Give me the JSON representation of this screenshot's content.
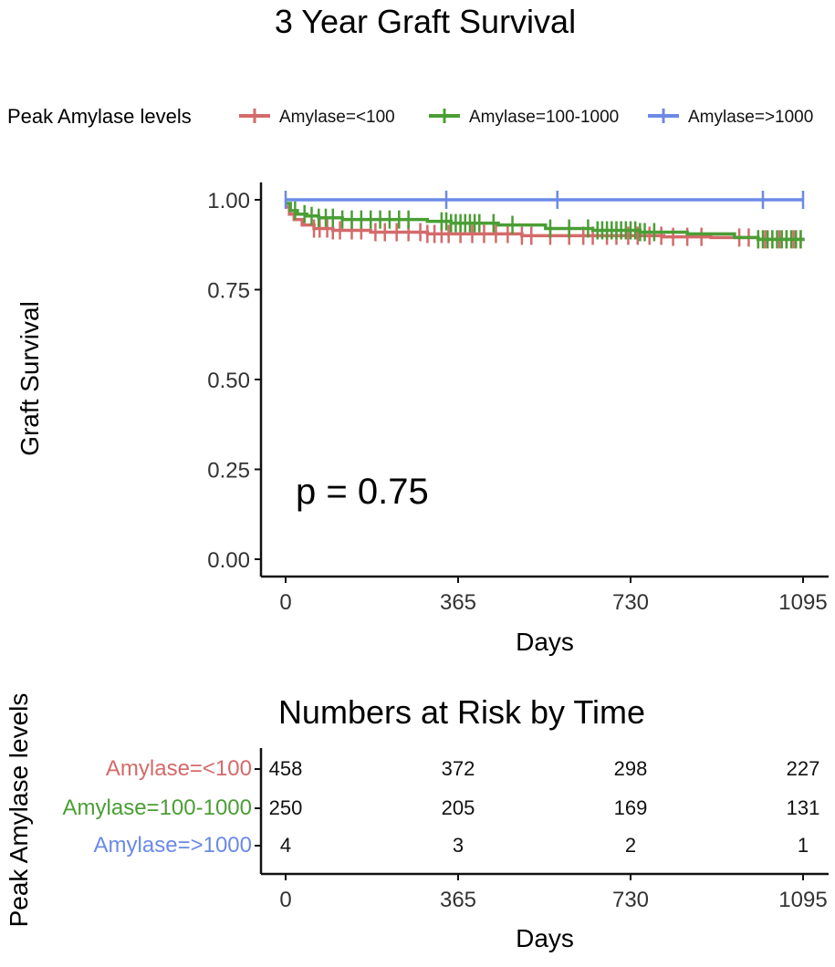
{
  "chart_data": [
    {
      "type": "line",
      "subtype": "kaplan-meier",
      "title": "3 Year Graft Survival",
      "xlabel": "Days",
      "ylabel": "Graft Survival",
      "xlim": [
        0,
        1095
      ],
      "ylim": [
        0,
        1
      ],
      "xticks": [
        0,
        365,
        730,
        1095
      ],
      "xtick_labels": [
        "0",
        "365",
        "730",
        "1095"
      ],
      "yticks": [
        0,
        0.25,
        0.5,
        0.75,
        1.0
      ],
      "ytick_labels": [
        "0.00",
        "0.25",
        "0.50",
        "0.75",
        "1.00"
      ],
      "annotation": "p = 0.75",
      "legend": {
        "title": "Peak Amylase levels",
        "position": "top",
        "labels": [
          "Amylase=<100",
          "Amylase=100-1000",
          "Amylase=>1000"
        ]
      },
      "series": [
        {
          "name": "Amylase=<100",
          "color": "#d46a6a",
          "x": [
            0,
            8,
            18,
            35,
            60,
            100,
            180,
            300,
            400,
            500,
            600,
            700,
            800,
            900,
            1000,
            1095
          ],
          "y": [
            0.98,
            0.96,
            0.945,
            0.93,
            0.92,
            0.915,
            0.91,
            0.905,
            0.905,
            0.9,
            0.9,
            0.9,
            0.897,
            0.895,
            0.89,
            0.89
          ],
          "censored_x": [
            60,
            72,
            88,
            100,
            115,
            140,
            160,
            190,
            210,
            235,
            260,
            285,
            300,
            315,
            330,
            345,
            370,
            395,
            420,
            445,
            470,
            500,
            520,
            560,
            600,
            630,
            650,
            680,
            700,
            725,
            745,
            770,
            795,
            820,
            850,
            880,
            960,
            980,
            1000,
            1015,
            1030,
            1045,
            1060,
            1075,
            1090
          ]
        },
        {
          "name": "Amylase=100-1000",
          "color": "#4a9e34",
          "x": [
            0,
            10,
            25,
            45,
            70,
            120,
            200,
            300,
            350,
            450,
            550,
            650,
            750,
            850,
            950,
            1000,
            1095
          ],
          "y": [
            0.99,
            0.97,
            0.96,
            0.955,
            0.95,
            0.945,
            0.945,
            0.94,
            0.935,
            0.93,
            0.92,
            0.915,
            0.91,
            0.905,
            0.895,
            0.89,
            0.885
          ],
          "censored_x": [
            20,
            40,
            55,
            70,
            85,
            100,
            120,
            140,
            160,
            180,
            200,
            220,
            240,
            260,
            330,
            340,
            350,
            360,
            370,
            380,
            390,
            400,
            410,
            440,
            480,
            560,
            600,
            640,
            660,
            670,
            680,
            690,
            700,
            710,
            720,
            730,
            740,
            750,
            760,
            780,
            1000,
            1010,
            1020,
            1030,
            1040,
            1050,
            1060,
            1070,
            1080,
            1090
          ]
        },
        {
          "name": "Amylase=>1000",
          "color": "#6b8ae6",
          "x": [
            0,
            1095
          ],
          "y": [
            1.0,
            1.0
          ],
          "censored_x": [
            0,
            340,
            575,
            1010,
            1095
          ]
        }
      ]
    },
    {
      "type": "table",
      "title": "Numbers at Risk by Time",
      "xlabel": "Days",
      "ylabel": "Peak Amylase levels",
      "xlim": [
        0,
        1095
      ],
      "xticks": [
        0,
        365,
        730,
        1095
      ],
      "xtick_labels": [
        "0",
        "365",
        "730",
        "1095"
      ],
      "rows": [
        {
          "name": "Amylase=<100",
          "color": "#d46a6a",
          "values": [
            "458",
            "372",
            "298",
            "227"
          ]
        },
        {
          "name": "Amylase=100-1000",
          "color": "#4a9e34",
          "values": [
            "250",
            "205",
            "169",
            "131"
          ]
        },
        {
          "name": "Amylase=>1000",
          "color": "#6b8ae6",
          "values": [
            "4",
            "3",
            "2",
            "1"
          ]
        }
      ]
    }
  ]
}
